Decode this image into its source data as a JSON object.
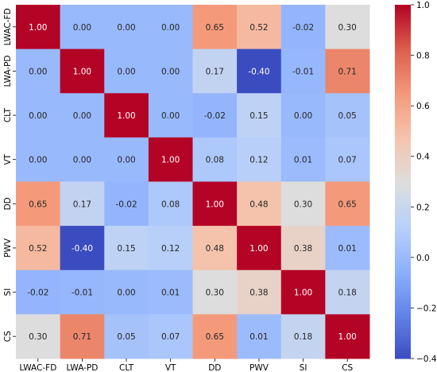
{
  "chart_data": {
    "type": "heatmap",
    "title": "",
    "xlabel": "",
    "ylabel": "",
    "colormap": "coolwarm",
    "vmin": -0.4,
    "vmax": 1.0,
    "x_labels": [
      "LWAC-FD",
      "LWA-PD",
      "CLT",
      "VT",
      "DD",
      "PWV",
      "SI",
      "CS"
    ],
    "y_labels": [
      "LWAC-FD",
      "LWA-PD",
      "CLT",
      "VT",
      "DD",
      "PWV",
      "SI",
      "CS"
    ],
    "values": [
      [
        1.0,
        0.0,
        0.0,
        0.0,
        0.65,
        0.52,
        -0.02,
        0.3
      ],
      [
        0.0,
        1.0,
        0.0,
        0.0,
        0.17,
        -0.4,
        -0.01,
        0.71
      ],
      [
        0.0,
        0.0,
        1.0,
        0.0,
        -0.02,
        0.15,
        0.0,
        0.05
      ],
      [
        0.0,
        0.0,
        0.0,
        1.0,
        0.08,
        0.12,
        0.01,
        0.07
      ],
      [
        0.65,
        0.17,
        -0.02,
        0.08,
        1.0,
        0.48,
        0.3,
        0.65
      ],
      [
        0.52,
        -0.4,
        0.15,
        0.12,
        0.48,
        1.0,
        0.38,
        0.01
      ],
      [
        -0.02,
        -0.01,
        0.0,
        0.01,
        0.3,
        0.38,
        1.0,
        0.18
      ],
      [
        0.3,
        0.71,
        0.05,
        0.07,
        0.65,
        0.01,
        0.18,
        1.0
      ]
    ],
    "cell_labels": [
      [
        "1.00",
        "0.00",
        "0.00",
        "0.00",
        "0.65",
        "0.52",
        "-0.02",
        "0.30"
      ],
      [
        "0.00",
        "1.00",
        "0.00",
        "0.00",
        "0.17",
        "-0.40",
        "-0.01",
        "0.71"
      ],
      [
        "0.00",
        "0.00",
        "1.00",
        "0.00",
        "-0.02",
        "0.15",
        "0.00",
        "0.05"
      ],
      [
        "0.00",
        "0.00",
        "0.00",
        "1.00",
        "0.08",
        "0.12",
        "0.01",
        "0.07"
      ],
      [
        "0.65",
        "0.17",
        "-0.02",
        "0.08",
        "1.00",
        "0.48",
        "0.30",
        "0.65"
      ],
      [
        "0.52",
        "-0.40",
        "0.15",
        "0.12",
        "0.48",
        "1.00",
        "0.38",
        "0.01"
      ],
      [
        "-0.02",
        "-0.01",
        "0.00",
        "0.01",
        "0.30",
        "0.38",
        "1.00",
        "0.18"
      ],
      [
        "0.30",
        "0.71",
        "0.05",
        "0.07",
        "0.65",
        "0.01",
        "0.18",
        "1.00"
      ]
    ],
    "colorbar": {
      "ticks": [
        -0.4,
        -0.2,
        0.0,
        0.2,
        0.4,
        0.6,
        0.8,
        1.0
      ],
      "tick_labels": [
        "−0.4",
        "−0.2",
        "0.0",
        "0.2",
        "0.4",
        "0.6",
        "0.8",
        "1.0"
      ],
      "placement": "right"
    }
  }
}
